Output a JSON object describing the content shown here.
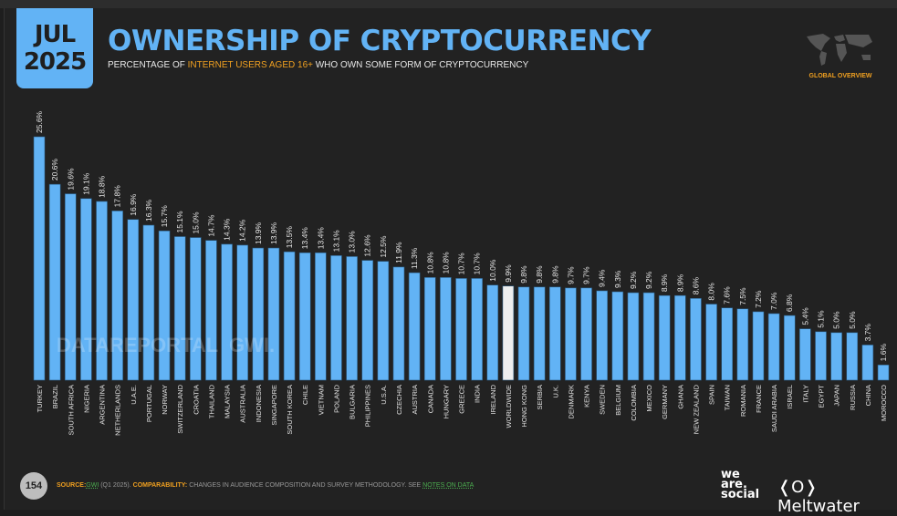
{
  "header": {
    "date_month": "JUL",
    "date_year": "2025",
    "title": "OWNERSHIP OF CRYPTOCURRENCY",
    "subtitle_pre": "PERCENTAGE OF ",
    "subtitle_highlight": "INTERNET USERS AGED 16+",
    "subtitle_post": " WHO OWN SOME FORM OF CRYPTOCURRENCY",
    "badge": "GLOBAL OVERVIEW",
    "map_icon": "world-map-icon"
  },
  "watermark": "DATAREPORTAL  GWI.",
  "footer": {
    "page_number": "154",
    "source_label": "SOURCE:",
    "source_link": "GWI",
    "source_detail": " (Q1 2025). ",
    "comparability_label": "COMPARABILITY:",
    "comparability_text": " CHANGES IN AUDIENCE COMPOSITION AND SURVEY METHODOLOGY. SEE ",
    "notes_link": "NOTES ON DATA",
    "logo_was": "we are social",
    "logo_meltwater": "Meltwater"
  },
  "colors": {
    "bar": "#62b3f5",
    "highlight_bar": "#eeeeee",
    "accent": "#f0a020",
    "background": "#222222"
  },
  "chart_data": {
    "type": "bar",
    "title": "OWNERSHIP OF CRYPTOCURRENCY",
    "ylim": [
      0,
      26
    ],
    "grid": false,
    "value_suffix": "%",
    "highlight": "WORLDWIDE",
    "categories": [
      "TURKEY",
      "BRAZIL",
      "SOUTH AFRICA",
      "NIGERIA",
      "ARGENTINA",
      "NETHERLANDS",
      "U.A.E.",
      "PORTUGAL",
      "NORWAY",
      "SWITZERLAND",
      "CROATIA",
      "THAILAND",
      "MALAYSIA",
      "AUSTRALIA",
      "INDONESIA",
      "SINGAPORE",
      "SOUTH KOREA",
      "CHILE",
      "VIETNAM",
      "POLAND",
      "BULGARIA",
      "PHILIPPINES",
      "U.S.A.",
      "CZECHIA",
      "AUSTRIA",
      "CANADA",
      "HUNGARY",
      "GREECE",
      "INDIA",
      "IRELAND",
      "WORLDWIDE",
      "HONG KONG",
      "SERBIA",
      "U.K.",
      "DENMARK",
      "KENYA",
      "SWEDEN",
      "BELGIUM",
      "COLOMBIA",
      "MEXICO",
      "GERMANY",
      "GHANA",
      "NEW ZEALAND",
      "SPAIN",
      "TAIWAN",
      "ROMANIA",
      "FRANCE",
      "SAUDI ARABIA",
      "ISRAEL",
      "ITALY",
      "EGYPT",
      "JAPAN",
      "RUSSIA",
      "CHINA",
      "MOROCCO"
    ],
    "values": [
      25.6,
      20.6,
      19.6,
      19.1,
      18.8,
      17.8,
      16.9,
      16.3,
      15.7,
      15.1,
      15.0,
      14.7,
      14.3,
      14.2,
      13.9,
      13.9,
      13.5,
      13.4,
      13.4,
      13.1,
      13.0,
      12.6,
      12.5,
      11.9,
      11.3,
      10.8,
      10.8,
      10.7,
      10.7,
      10.0,
      9.9,
      9.8,
      9.8,
      9.8,
      9.7,
      9.7,
      9.4,
      9.3,
      9.2,
      9.2,
      8.9,
      8.9,
      8.6,
      8.0,
      7.6,
      7.5,
      7.2,
      7.0,
      6.8,
      5.4,
      5.1,
      5.0,
      5.0,
      3.7,
      1.6
    ]
  }
}
